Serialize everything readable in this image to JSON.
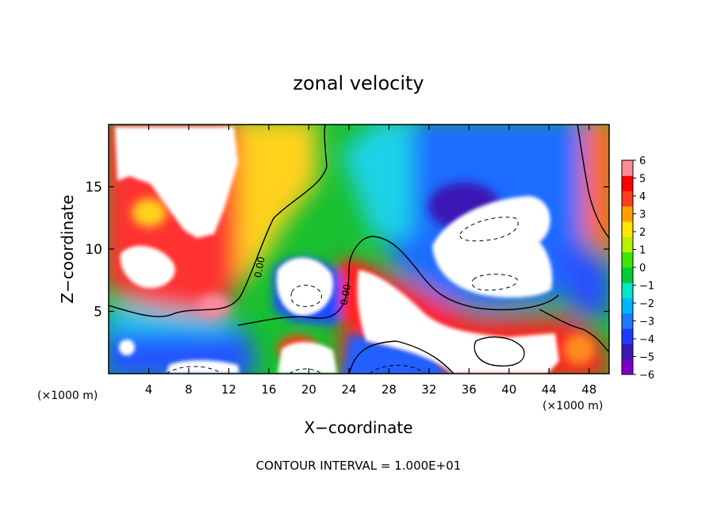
{
  "chart_data": {
    "type": "heatmap",
    "title": "zonal velocity",
    "xlabel": "X−coordinate",
    "ylabel": "Z−coordinate",
    "x_unit_label_left": "(×1000 m)",
    "x_unit_label_right": "(×1000 m)",
    "footer": "CONTOUR INTERVAL = 1.000E+01",
    "xlim": [
      0,
      50
    ],
    "ylim": [
      0,
      20
    ],
    "x_ticks": [
      4,
      8,
      12,
      16,
      20,
      24,
      28,
      32,
      36,
      40,
      44,
      48
    ],
    "y_ticks": [
      5,
      10,
      15
    ],
    "colorbar": {
      "ticks": [
        6,
        5,
        4,
        3,
        2,
        1,
        0,
        -1,
        -2,
        -3,
        -4,
        -5,
        -6
      ],
      "range": [
        -6,
        6
      ],
      "out_of_range_color": "#ffffff"
    },
    "contour_labels": [
      {
        "text": "0.00",
        "x": 15.4,
        "z": 8.5
      },
      {
        "text": "0.00",
        "x": 24.0,
        "z": 6.3
      }
    ],
    "colors": {
      "axis": "#000000",
      "background": "#ffffff"
    }
  }
}
